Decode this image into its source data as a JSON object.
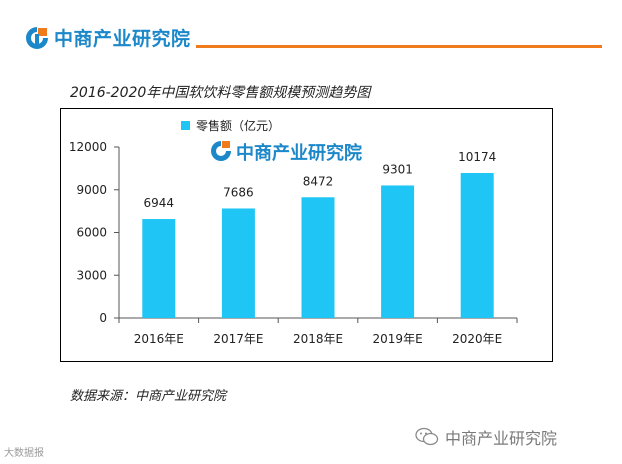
{
  "header": {
    "brand": "中商产业研究院",
    "brand_color": "#1d88c9",
    "rule_color": "#f07b1c"
  },
  "chart_data": {
    "type": "bar",
    "title": "2016-2020年中国软饮料零售额规模预测趋势图",
    "categories": [
      "2016年E",
      "2017年E",
      "2018年E",
      "2019年E",
      "2020年E"
    ],
    "series": [
      {
        "name": "零售额（亿元）",
        "values": [
          6944,
          7686,
          8472,
          9301,
          10174
        ],
        "color": "#1ec5f5"
      }
    ],
    "data_labels": [
      "6944",
      "7686",
      "8472",
      "9301",
      "10174"
    ],
    "ylim": [
      0,
      12000
    ],
    "yticks": [
      0,
      3000,
      6000,
      9000,
      12000
    ],
    "ytick_labels": [
      "0",
      "3000",
      "6000",
      "9000",
      "12000"
    ],
    "xlabel": "",
    "ylabel": "",
    "legend": "top-left",
    "watermark": "中商产业研究院"
  },
  "footer": {
    "source": "数据来源：中商产业研究院",
    "wechat_watermark": "中商产业研究院",
    "corner_watermark": "大数据报"
  }
}
